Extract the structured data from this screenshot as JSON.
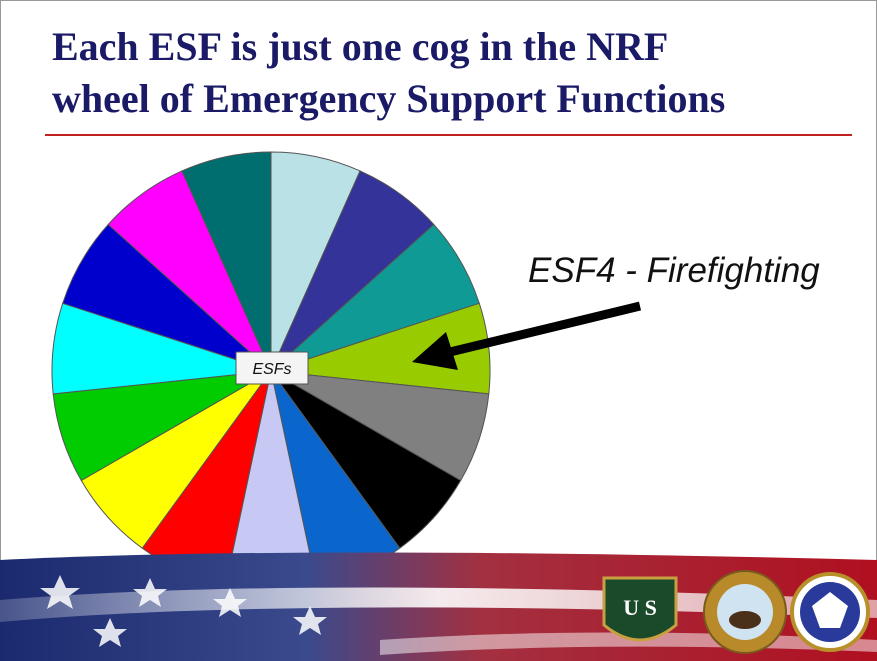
{
  "header": {
    "title_lines": [
      "Each ESF is just one cog in the NRF",
      "wheel of Emergency Support Functions"
    ]
  },
  "diagram": {
    "center_label": "ESFs",
    "annotation": "ESF4 - Firefighting"
  }
}
